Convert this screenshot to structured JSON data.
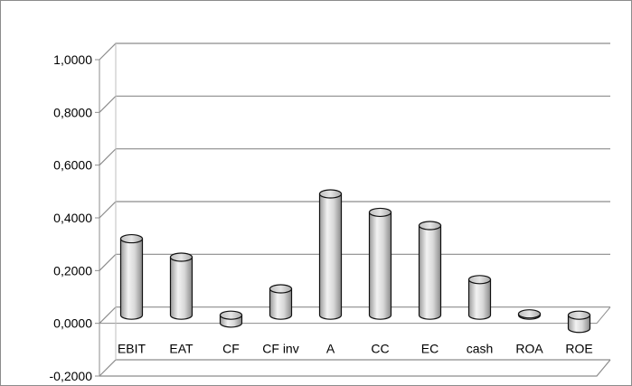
{
  "chart_data": {
    "type": "bar",
    "style": "3d-cylinder",
    "categories": [
      "EBIT",
      "EAT",
      "CF",
      "CF inv",
      "A",
      "CC",
      "EC",
      "cash",
      "ROA",
      "ROE"
    ],
    "values": [
      0.29,
      0.22,
      -0.03,
      0.1,
      0.46,
      0.39,
      0.34,
      0.135,
      0.005,
      -0.05
    ],
    "ylim": [
      -0.2,
      1.0
    ],
    "yticks": [
      -0.2,
      0.0,
      0.2,
      0.4,
      0.6,
      0.8,
      1.0
    ],
    "ytick_labels": [
      "-0,2000",
      "0,0000",
      "0,2000",
      "0,4000",
      "0,6000",
      "0,8000",
      "1,0000"
    ],
    "grid": true,
    "legend": "none",
    "bar_color": "#d4d4d4",
    "title": "",
    "xlabel": "",
    "ylabel": ""
  }
}
